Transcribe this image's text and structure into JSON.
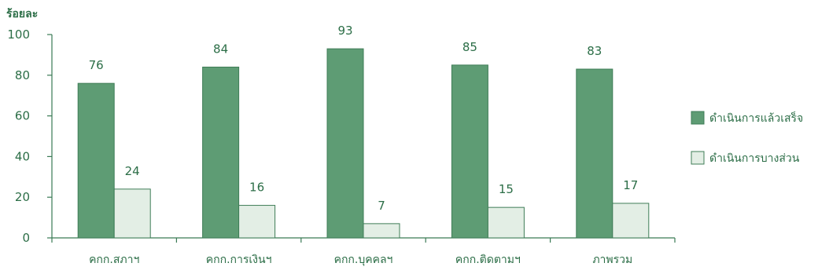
{
  "chart_data": {
    "type": "bar",
    "ylabel": "ร้อยละ",
    "ylim": [
      0,
      100
    ],
    "yticks": [
      0,
      20,
      40,
      60,
      80,
      100
    ],
    "categories": [
      "คกก.สภาฯ",
      "คกก.การเงินฯ",
      "คกก.บุคคลฯ",
      "คกก.ติดตามฯ",
      "ภาพรวม"
    ],
    "series": [
      {
        "name": "ดำเนินการแล้วเสร็จ",
        "values": [
          76,
          84,
          93,
          85,
          83
        ],
        "color": "#5e9c74",
        "stroke": "#3f7d57"
      },
      {
        "name": "ดำเนินการบางส่วน",
        "values": [
          24,
          16,
          7,
          15,
          17
        ],
        "color": "#e3eee5",
        "stroke": "#3f7d57"
      }
    ],
    "legend_position": "right",
    "grid": false
  }
}
